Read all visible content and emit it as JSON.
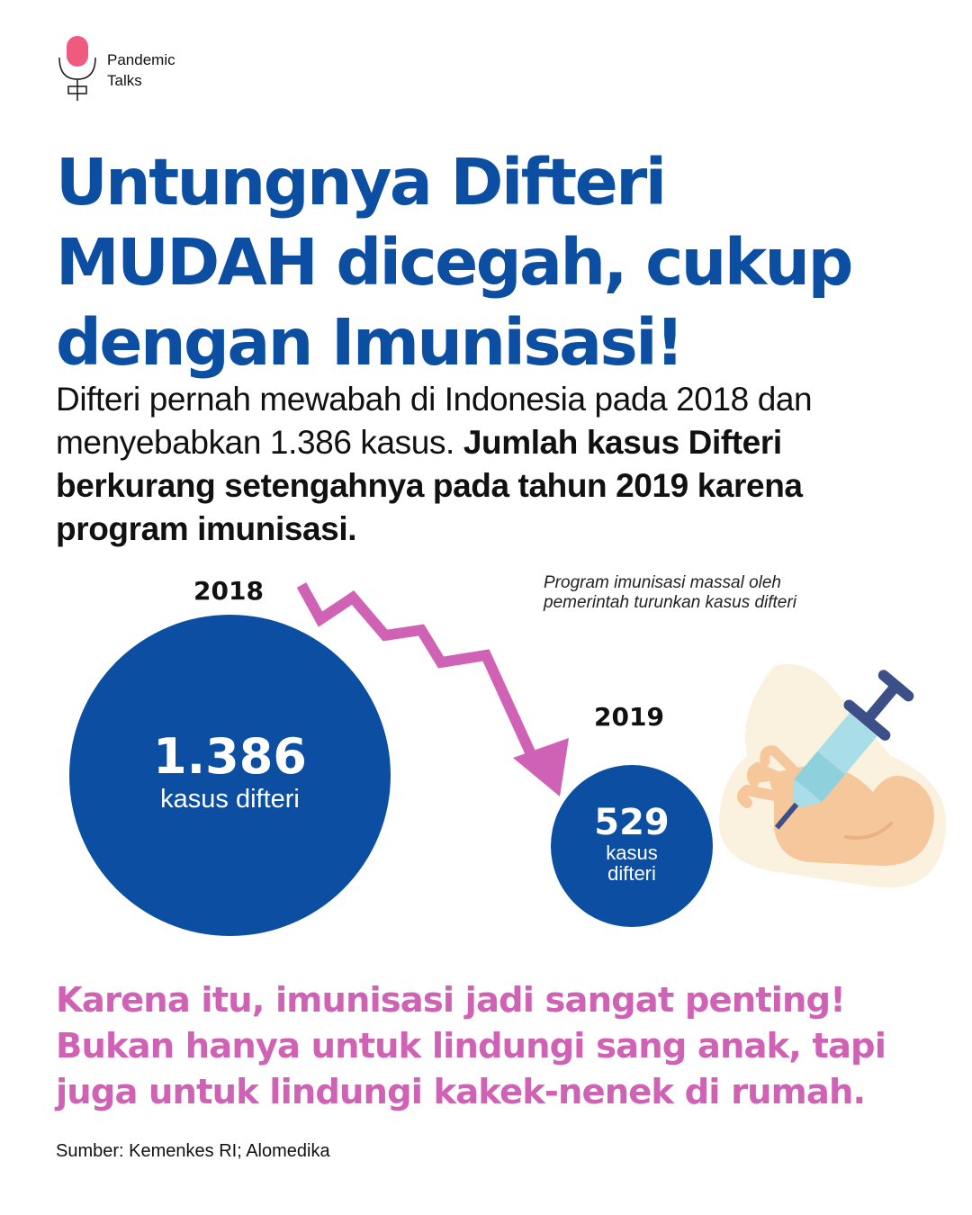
{
  "brand": {
    "line1": "Pandemic",
    "line2": "Talks",
    "icon": "microphone-icon"
  },
  "headline": {
    "line1": "Untungnya Difteri",
    "line2": "MUDAH dicegah, cukup",
    "line3": "dengan Imunisasi!"
  },
  "intro": {
    "normal": "Difteri pernah mewabah di Indonesia pada 2018 dan menyebabkan 1.386 kasus.",
    "bold": "Jumlah kasus Difteri berkurang setengahnya pada tahun 2019 karena program imunisasi."
  },
  "stats": {
    "y2018": {
      "year": "2018",
      "value": "1.386",
      "label": "kasus difteri"
    },
    "y2019": {
      "year": "2019",
      "value": "529",
      "label": "kasus difteri"
    }
  },
  "note": "Program imunisasi massal oleh pemerintah turunkan kasus difteri",
  "closing": {
    "line1": "Karena itu, imunisasi jadi sangat penting!",
    "line2": "Bukan hanya untuk lindungi sang anak, tapi",
    "line3": "juga untuk lindungi kakek-nenek di rumah."
  },
  "source": "Sumber: Kemenkes RI; Alomedika",
  "colors": {
    "primary": "#0b4ea2",
    "accent": "#d062b6",
    "text": "#111111",
    "background": "#ffffff"
  },
  "illustration": "syringe-injecting-arm-icon"
}
